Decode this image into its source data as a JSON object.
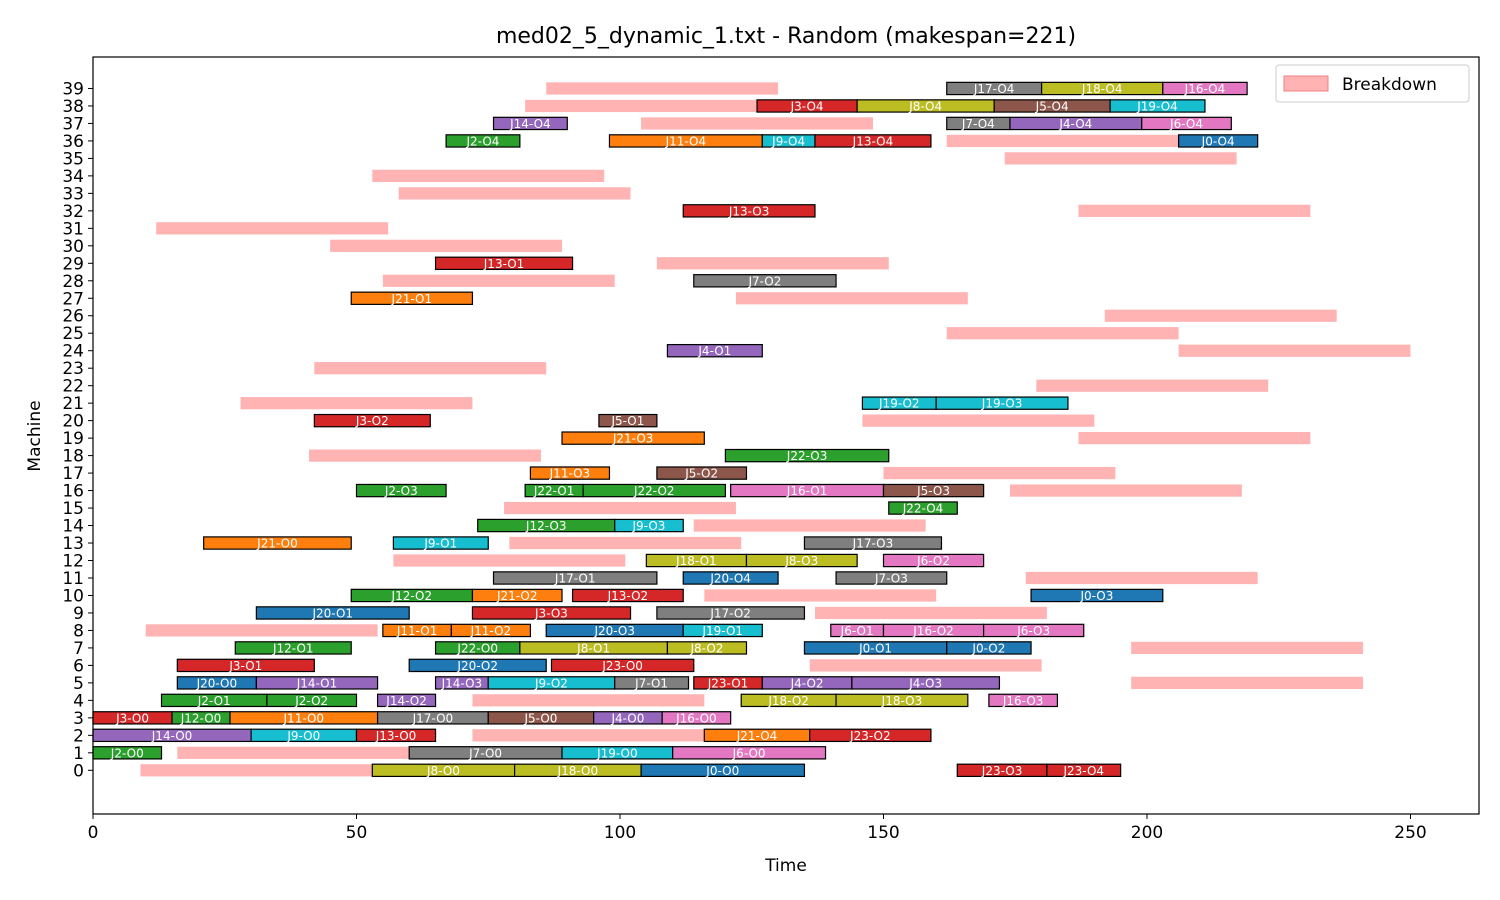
{
  "chart_data": {
    "type": "gantt",
    "title": "med02_5_dynamic_1.txt - Random (makespan=221)",
    "xlabel": "Time",
    "ylabel": "Machine",
    "xlim": [
      0,
      263
    ],
    "ylim": [
      -2.5,
      40.8
    ],
    "xticks": [
      0,
      50,
      100,
      150,
      200,
      250
    ],
    "yticks": [
      0,
      1,
      2,
      3,
      4,
      5,
      6,
      7,
      8,
      9,
      10,
      11,
      12,
      13,
      14,
      15,
      16,
      17,
      18,
      19,
      20,
      21,
      22,
      23,
      24,
      25,
      26,
      27,
      28,
      29,
      30,
      31,
      32,
      33,
      34,
      35,
      36,
      37,
      38,
      39
    ],
    "grid": false,
    "legend": {
      "position": "top-right",
      "entries": [
        {
          "label": "Breakdown",
          "color": "#ffb3b3"
        }
      ]
    },
    "job_colors": {
      "J0": "#1f77b4",
      "J1": "#ff7f0e",
      "J2": "#2ca02c",
      "J3": "#d62728",
      "J4": "#9467bd",
      "J5": "#8c564b",
      "J6": "#e377c2",
      "J7": "#7f7f7f",
      "J8": "#bcbd22",
      "J9": "#17becf",
      "J10": "#1f77b4",
      "J11": "#ff7f0e",
      "J12": "#2ca02c",
      "J13": "#d62728",
      "J14": "#9467bd",
      "J15": "#8c564b",
      "J16": "#e377c2",
      "J17": "#7f7f7f",
      "J18": "#bcbd22",
      "J19": "#17becf",
      "J20": "#1f77b4",
      "J21": "#ff7f0e",
      "J22": "#2ca02c",
      "J23": "#d62728"
    },
    "breakdowns": [
      {
        "machine": 39,
        "start": 86,
        "end": 130
      },
      {
        "machine": 38,
        "start": 82,
        "end": 126
      },
      {
        "machine": 37,
        "start": 104,
        "end": 148
      },
      {
        "machine": 36,
        "start": 162,
        "end": 206
      },
      {
        "machine": 35,
        "start": 173,
        "end": 217
      },
      {
        "machine": 34,
        "start": 53,
        "end": 97
      },
      {
        "machine": 33,
        "start": 58,
        "end": 102
      },
      {
        "machine": 32,
        "start": 187,
        "end": 231
      },
      {
        "machine": 31,
        "start": 12,
        "end": 56
      },
      {
        "machine": 30,
        "start": 45,
        "end": 89
      },
      {
        "machine": 29,
        "start": 107,
        "end": 151
      },
      {
        "machine": 28,
        "start": 55,
        "end": 99
      },
      {
        "machine": 27,
        "start": 122,
        "end": 166
      },
      {
        "machine": 26,
        "start": 192,
        "end": 236
      },
      {
        "machine": 25,
        "start": 162,
        "end": 206
      },
      {
        "machine": 24,
        "start": 206,
        "end": 250
      },
      {
        "machine": 23,
        "start": 42,
        "end": 86
      },
      {
        "machine": 22,
        "start": 179,
        "end": 223
      },
      {
        "machine": 21,
        "start": 28,
        "end": 72
      },
      {
        "machine": 20,
        "start": 146,
        "end": 190
      },
      {
        "machine": 19,
        "start": 187,
        "end": 231
      },
      {
        "machine": 18,
        "start": 41,
        "end": 85
      },
      {
        "machine": 17,
        "start": 150,
        "end": 194
      },
      {
        "machine": 16,
        "start": 174,
        "end": 218
      },
      {
        "machine": 15,
        "start": 78,
        "end": 122
      },
      {
        "machine": 14,
        "start": 114,
        "end": 158
      },
      {
        "machine": 13,
        "start": 79,
        "end": 123
      },
      {
        "machine": 12,
        "start": 57,
        "end": 101
      },
      {
        "machine": 11,
        "start": 177,
        "end": 221
      },
      {
        "machine": 10,
        "start": 116,
        "end": 160
      },
      {
        "machine": 9,
        "start": 137,
        "end": 181
      },
      {
        "machine": 8,
        "start": 10,
        "end": 54
      },
      {
        "machine": 7,
        "start": 197,
        "end": 241
      },
      {
        "machine": 6,
        "start": 136,
        "end": 180
      },
      {
        "machine": 5,
        "start": 197,
        "end": 241
      },
      {
        "machine": 4,
        "start": 72,
        "end": 116
      },
      {
        "machine": 2,
        "start": 72,
        "end": 116
      },
      {
        "machine": 1,
        "start": 16,
        "end": 60
      },
      {
        "machine": 0,
        "start": 9,
        "end": 53
      }
    ],
    "operations": [
      {
        "machine": 39,
        "job": "J17",
        "label": "J17-O4",
        "start": 162,
        "end": 180
      },
      {
        "machine": 39,
        "job": "J18",
        "label": "J18-O4",
        "start": 180,
        "end": 203
      },
      {
        "machine": 39,
        "job": "J16",
        "label": "J16-O4",
        "start": 203,
        "end": 219
      },
      {
        "machine": 38,
        "job": "J3",
        "label": "J3-O4",
        "start": 126,
        "end": 145
      },
      {
        "machine": 38,
        "job": "J8",
        "label": "J8-O4",
        "start": 145,
        "end": 171
      },
      {
        "machine": 38,
        "job": "J5",
        "label": "J5-O4",
        "start": 171,
        "end": 193
      },
      {
        "machine": 38,
        "job": "J19",
        "label": "J19-O4",
        "start": 193,
        "end": 211
      },
      {
        "machine": 37,
        "job": "J14",
        "label": "J14-O4",
        "start": 76,
        "end": 90
      },
      {
        "machine": 37,
        "job": "J7",
        "label": "J7-O4",
        "start": 162,
        "end": 174
      },
      {
        "machine": 37,
        "job": "J4",
        "label": "J4-O4",
        "start": 174,
        "end": 199
      },
      {
        "machine": 37,
        "job": "J6",
        "label": "J6-O4",
        "start": 199,
        "end": 216
      },
      {
        "machine": 36,
        "job": "J2",
        "label": "J2-O4",
        "start": 67,
        "end": 81
      },
      {
        "machine": 36,
        "job": "J11",
        "label": "J11-O4",
        "start": 98,
        "end": 127
      },
      {
        "machine": 36,
        "job": "J9",
        "label": "J9-O4",
        "start": 127,
        "end": 137
      },
      {
        "machine": 36,
        "job": "J13",
        "label": "J13-O4",
        "start": 137,
        "end": 159
      },
      {
        "machine": 36,
        "job": "J0",
        "label": "J0-O4",
        "start": 206,
        "end": 221
      },
      {
        "machine": 32,
        "job": "J13",
        "label": "J13-O3",
        "start": 112,
        "end": 137
      },
      {
        "machine": 29,
        "job": "J13",
        "label": "J13-O1",
        "start": 65,
        "end": 91
      },
      {
        "machine": 28,
        "job": "J7",
        "label": "J7-O2",
        "start": 114,
        "end": 141
      },
      {
        "machine": 27,
        "job": "J21",
        "label": "J21-O1",
        "start": 49,
        "end": 72
      },
      {
        "machine": 24,
        "job": "J4",
        "label": "J4-O1",
        "start": 109,
        "end": 127
      },
      {
        "machine": 21,
        "job": "J19",
        "label": "J19-O2",
        "start": 146,
        "end": 160
      },
      {
        "machine": 21,
        "job": "J19",
        "label": "J19-O3",
        "start": 160,
        "end": 185
      },
      {
        "machine": 20,
        "job": "J3",
        "label": "J3-O2",
        "start": 42,
        "end": 64
      },
      {
        "machine": 20,
        "job": "J5",
        "label": "J5-O1",
        "start": 96,
        "end": 107
      },
      {
        "machine": 19,
        "job": "J21",
        "label": "J21-O3",
        "start": 89,
        "end": 116
      },
      {
        "machine": 18,
        "job": "J22",
        "label": "J22-O3",
        "start": 120,
        "end": 151
      },
      {
        "machine": 17,
        "job": "J11",
        "label": "J11-O3",
        "start": 83,
        "end": 98
      },
      {
        "machine": 17,
        "job": "J5",
        "label": "J5-O2",
        "start": 107,
        "end": 124
      },
      {
        "machine": 16,
        "job": "J2",
        "label": "J2-O3",
        "start": 50,
        "end": 67
      },
      {
        "machine": 16,
        "job": "J22",
        "label": "J22-O1",
        "start": 82,
        "end": 93
      },
      {
        "machine": 16,
        "job": "J22",
        "label": "J22-O2",
        "start": 93,
        "end": 120
      },
      {
        "machine": 16,
        "job": "J16",
        "label": "J16-O1",
        "start": 121,
        "end": 150
      },
      {
        "machine": 16,
        "job": "J5",
        "label": "J5-O3",
        "start": 150,
        "end": 169
      },
      {
        "machine": 15,
        "job": "J22",
        "label": "J22-O4",
        "start": 151,
        "end": 164
      },
      {
        "machine": 14,
        "job": "J12",
        "label": "J12-O3",
        "start": 73,
        "end": 99
      },
      {
        "machine": 14,
        "job": "J9",
        "label": "J9-O3",
        "start": 99,
        "end": 112
      },
      {
        "machine": 13,
        "job": "J21",
        "label": "J21-O0",
        "start": 21,
        "end": 49
      },
      {
        "machine": 13,
        "job": "J9",
        "label": "J9-O1",
        "start": 57,
        "end": 75
      },
      {
        "machine": 13,
        "job": "J17",
        "label": "J17-O3",
        "start": 135,
        "end": 161
      },
      {
        "machine": 12,
        "job": "J18",
        "label": "J18-O1",
        "start": 105,
        "end": 124
      },
      {
        "machine": 12,
        "job": "J8",
        "label": "J8-O3",
        "start": 124,
        "end": 145
      },
      {
        "machine": 12,
        "job": "J6",
        "label": "J6-O2",
        "start": 150,
        "end": 169
      },
      {
        "machine": 11,
        "job": "J17",
        "label": "J17-O1",
        "start": 76,
        "end": 107
      },
      {
        "machine": 11,
        "job": "J20",
        "label": "J20-O4",
        "start": 112,
        "end": 130
      },
      {
        "machine": 11,
        "job": "J7",
        "label": "J7-O3",
        "start": 141,
        "end": 162
      },
      {
        "machine": 10,
        "job": "J12",
        "label": "J12-O2",
        "start": 49,
        "end": 72
      },
      {
        "machine": 10,
        "job": "J21",
        "label": "J21-O2",
        "start": 72,
        "end": 89
      },
      {
        "machine": 10,
        "job": "J13",
        "label": "J13-O2",
        "start": 91,
        "end": 112
      },
      {
        "machine": 10,
        "job": "J0",
        "label": "J0-O3",
        "start": 178,
        "end": 203
      },
      {
        "machine": 9,
        "job": "J20",
        "label": "J20-O1",
        "start": 31,
        "end": 60
      },
      {
        "machine": 9,
        "job": "J3",
        "label": "J3-O3",
        "start": 72,
        "end": 102
      },
      {
        "machine": 9,
        "job": "J17",
        "label": "J17-O2",
        "start": 107,
        "end": 135
      },
      {
        "machine": 8,
        "job": "J11",
        "label": "J11-O1",
        "start": 55,
        "end": 68
      },
      {
        "machine": 8,
        "job": "J11",
        "label": "J11-O2",
        "start": 68,
        "end": 83
      },
      {
        "machine": 8,
        "job": "J20",
        "label": "J20-O3",
        "start": 86,
        "end": 112
      },
      {
        "machine": 8,
        "job": "J19",
        "label": "J19-O1",
        "start": 112,
        "end": 127
      },
      {
        "machine": 8,
        "job": "J6",
        "label": "J6-O1",
        "start": 140,
        "end": 150
      },
      {
        "machine": 8,
        "job": "J16",
        "label": "J16-O2",
        "start": 150,
        "end": 169
      },
      {
        "machine": 8,
        "job": "J6",
        "label": "J6-O3",
        "start": 169,
        "end": 188
      },
      {
        "machine": 7,
        "job": "J12",
        "label": "J12-O1",
        "start": 27,
        "end": 49
      },
      {
        "machine": 7,
        "job": "J22",
        "label": "J22-O0",
        "start": 65,
        "end": 81
      },
      {
        "machine": 7,
        "job": "J8",
        "label": "J8-O1",
        "start": 81,
        "end": 109
      },
      {
        "machine": 7,
        "job": "J8",
        "label": "J8-O2",
        "start": 109,
        "end": 124
      },
      {
        "machine": 7,
        "job": "J0",
        "label": "J0-O1",
        "start": 135,
        "end": 162
      },
      {
        "machine": 7,
        "job": "J0",
        "label": "J0-O2",
        "start": 162,
        "end": 178
      },
      {
        "machine": 6,
        "job": "J3",
        "label": "J3-O1",
        "start": 16,
        "end": 42
      },
      {
        "machine": 6,
        "job": "J20",
        "label": "J20-O2",
        "start": 60,
        "end": 86
      },
      {
        "machine": 6,
        "job": "J23",
        "label": "J23-O0",
        "start": 87,
        "end": 114
      },
      {
        "machine": 5,
        "job": "J20",
        "label": "J20-O0",
        "start": 16,
        "end": 31
      },
      {
        "machine": 5,
        "job": "J14",
        "label": "J14-O1",
        "start": 31,
        "end": 54
      },
      {
        "machine": 5,
        "job": "J14",
        "label": "J14-O3",
        "start": 65,
        "end": 75
      },
      {
        "machine": 5,
        "job": "J9",
        "label": "J9-O2",
        "start": 75,
        "end": 99
      },
      {
        "machine": 5,
        "job": "J7",
        "label": "J7-O1",
        "start": 99,
        "end": 113
      },
      {
        "machine": 5,
        "job": "J23",
        "label": "J23-O1",
        "start": 114,
        "end": 127
      },
      {
        "machine": 5,
        "job": "J4",
        "label": "J4-O2",
        "start": 127,
        "end": 144
      },
      {
        "machine": 5,
        "job": "J4",
        "label": "J4-O3",
        "start": 144,
        "end": 172
      },
      {
        "machine": 4,
        "job": "J2",
        "label": "J2-O1",
        "start": 13,
        "end": 33
      },
      {
        "machine": 4,
        "job": "J2",
        "label": "J2-O2",
        "start": 33,
        "end": 50
      },
      {
        "machine": 4,
        "job": "J14",
        "label": "J14-O2",
        "start": 54,
        "end": 65
      },
      {
        "machine": 4,
        "job": "J18",
        "label": "J18-O2",
        "start": 123,
        "end": 141
      },
      {
        "machine": 4,
        "job": "J18",
        "label": "J18-O3",
        "start": 141,
        "end": 166
      },
      {
        "machine": 4,
        "job": "J16",
        "label": "J16-O3",
        "start": 170,
        "end": 183
      },
      {
        "machine": 3,
        "job": "J3",
        "label": "J3-O0",
        "start": 0,
        "end": 15
      },
      {
        "machine": 3,
        "job": "J12",
        "label": "J12-O0",
        "start": 15,
        "end": 26
      },
      {
        "machine": 3,
        "job": "J11",
        "label": "J11-O0",
        "start": 26,
        "end": 54
      },
      {
        "machine": 3,
        "job": "J17",
        "label": "J17-O0",
        "start": 54,
        "end": 75
      },
      {
        "machine": 3,
        "job": "J5",
        "label": "J5-O0",
        "start": 75,
        "end": 95
      },
      {
        "machine": 3,
        "job": "J4",
        "label": "J4-O0",
        "start": 95,
        "end": 108
      },
      {
        "machine": 3,
        "job": "J16",
        "label": "J16-O0",
        "start": 108,
        "end": 121
      },
      {
        "machine": 2,
        "job": "J14",
        "label": "J14-O0",
        "start": 0,
        "end": 30
      },
      {
        "machine": 2,
        "job": "J9",
        "label": "J9-O0",
        "start": 30,
        "end": 50
      },
      {
        "machine": 2,
        "job": "J13",
        "label": "J13-O0",
        "start": 50,
        "end": 65
      },
      {
        "machine": 2,
        "job": "J21",
        "label": "J21-O4",
        "start": 116,
        "end": 136
      },
      {
        "machine": 2,
        "job": "J23",
        "label": "J23-O2",
        "start": 136,
        "end": 159
      },
      {
        "machine": 1,
        "job": "J2",
        "label": "J2-O0",
        "start": 0,
        "end": 13
      },
      {
        "machine": 1,
        "job": "J7",
        "label": "J7-O0",
        "start": 60,
        "end": 89
      },
      {
        "machine": 1,
        "job": "J19",
        "label": "J19-O0",
        "start": 89,
        "end": 110
      },
      {
        "machine": 1,
        "job": "J6",
        "label": "J6-O0",
        "start": 110,
        "end": 139
      },
      {
        "machine": 0,
        "job": "J8",
        "label": "J8-O0",
        "start": 53,
        "end": 80
      },
      {
        "machine": 0,
        "job": "J18",
        "label": "J18-O0",
        "start": 80,
        "end": 104
      },
      {
        "machine": 0,
        "job": "J0",
        "label": "J0-O0",
        "start": 104,
        "end": 135
      },
      {
        "machine": 0,
        "job": "J23",
        "label": "J23-O3",
        "start": 164,
        "end": 181
      },
      {
        "machine": 0,
        "job": "J23",
        "label": "J23-O4",
        "start": 181,
        "end": 195
      }
    ]
  }
}
